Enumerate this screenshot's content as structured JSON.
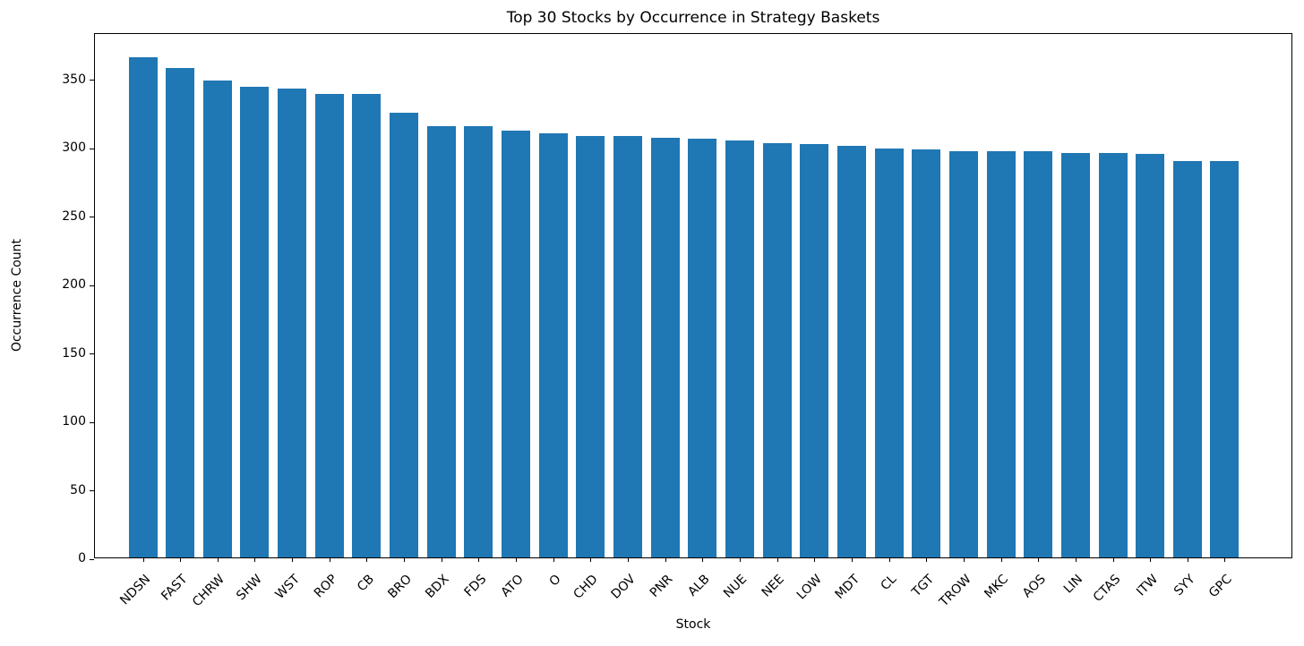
{
  "chart_data": {
    "type": "bar",
    "title": "Top 30 Stocks by Occurrence in Strategy Baskets",
    "xlabel": "Stock",
    "ylabel": "Occurrence Count",
    "categories": [
      "NDSN",
      "FAST",
      "CHRW",
      "SHW",
      "WST",
      "ROP",
      "CB",
      "BRO",
      "BDX",
      "FDS",
      "ATO",
      "O",
      "CHD",
      "DOV",
      "PNR",
      "ALB",
      "NUE",
      "NEE",
      "LOW",
      "MDT",
      "CL",
      "TGT",
      "TROW",
      "MKC",
      "AOS",
      "LIN",
      "CTAS",
      "ITW",
      "SYY",
      "GPC"
    ],
    "values": [
      366,
      358,
      349,
      344,
      343,
      339,
      339,
      325,
      315,
      315,
      312,
      310,
      308,
      308,
      307,
      306,
      305,
      303,
      302,
      301,
      299,
      298,
      297,
      297,
      297,
      296,
      296,
      295,
      290,
      290
    ],
    "yticks": [
      0,
      50,
      100,
      150,
      200,
      250,
      300,
      350
    ],
    "ylim": [
      0,
      384
    ],
    "bar_color": "#1f77b4",
    "grid": false,
    "legend": "none",
    "x_tick_rotation_deg": 45
  }
}
